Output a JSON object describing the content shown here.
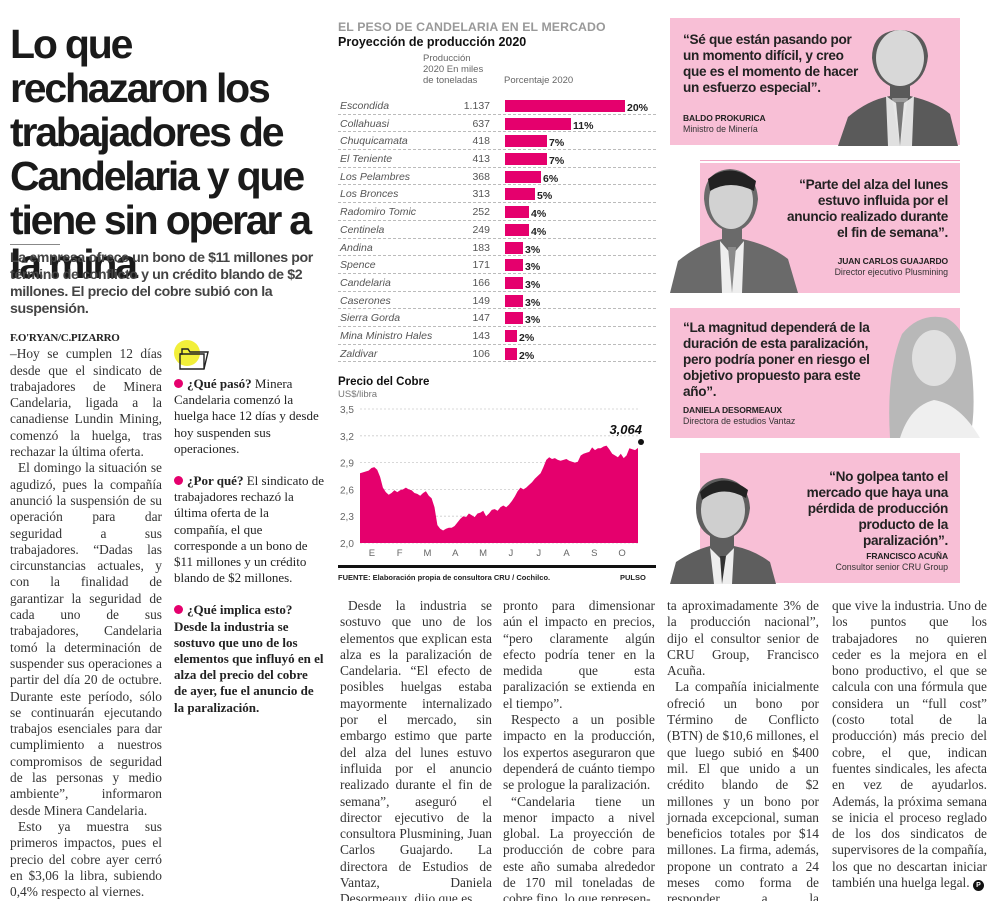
{
  "article": {
    "headline": "Lo que rechazaron los trabajadores de Candelaria y que tiene sin operar a la mina",
    "deck": "La empresa ofrece un bono de $11 millones por término de conflicto y un crédito blando de $2 millones. El precio del cobre subió con la suspensión.",
    "byline": "F.O'RYAN/C.PIZARRO",
    "col1": [
      "–Hoy se cumplen 12 días desde que el sindicato de trabajadores de Minera Candelaria, ligada a la canadiense Lundin Mining, comenzó la huelga, tras rechazar la última oferta.",
      "El domingo la situación se agudizó, pues la compañía anunció la suspensión de su operación para dar seguridad a sus trabajadores. “Dadas las circunstancias actuales, y con la finalidad de garantizar la seguridad de cada uno de sus trabajadores, Candelaria tomó la determinación de suspender sus operaciones a partir del día 20 de octubre. Durante este período, sólo se continuarán ejecutando trabajos esenciales para dar cumplimiento a nuestros compromisos de seguridad de las personas y medio ambiente”, informaron desde Minera Candelaria.",
      "Esto ya muestra sus primeros impactos, pues el precio del cobre ayer cerró en $3,06 la libra, subiendo 0,4% respecto al viernes."
    ],
    "col3": [
      "Desde la industria se sostuvo que uno de los elementos que explican esta alza es la paralización de Candelaria. “El efecto de posibles huelgas estaba mayormente internalizado por el mercado, sin embargo estimo que parte del alza del lunes estuvo influida por el anuncio realizado durante el fin de semana”, aseguró el director ejecutivo de la consultora Plusmining, Juan Carlos Guajardo. La directora de Estudios de Vantaz, Daniela Desormeaux, dijo que es"
    ],
    "col4": [
      "pronto para dimensionar aún el impacto en precios, “pero claramente algún efecto podría tener en la medida que esta paralización se extienda en el tiempo”.",
      "Respecto a un posible impacto en la producción, los expertos aseguraron que dependerá de cuánto tiempo se prologue la paralización.",
      "“Candelaria tiene un menor impacto a nivel global. La proyección de producción de cobre para este año sumaba alrededor de 170 mil toneladas de cobre fino, lo que represen-"
    ],
    "col5": [
      "ta aproximadamente 3% de la producción nacional”, dijo el consultor senior de CRU Group, Francisco Acuña.",
      "La compañía inicialmente ofreció un bono por Término de Conflicto (BTN) de $10,6 millones, el que luego subió en $400 mil. El que unido a un crédito blando de $2 millones y un bono por jornada excepcional, suman beneficios totales por $14 millones. La firma, además, propone un contrato a 24 meses como forma de responder a la incertidumbre"
    ],
    "col6": [
      "que vive la industria. Uno de los puntos que los trabajadores no quieren ceder es la mejora en el bono productivo, el que se calcula con una fórmula que considera un “full cost” (costo total de la producción) más precio del cobre, el que, indican fuentes sindicales, les afecta en vez de ayudarlos. Además, la próxima semana se inicia el proceso reglado de los dos sindicatos de supervisores de la compañía, los que no descartan iniciar también una huelga legal."
    ],
    "end_mark": "P"
  },
  "sidebar": {
    "icon": "folder-icon",
    "items": [
      {
        "q": "¿Qué pasó?",
        "a": "Minera Candelaria comenzó la huelga hace 12 días y desde hoy suspenden sus operaciones."
      },
      {
        "q": "¿Por qué?",
        "a": "El sindicato de trabajadores rechazó la última oferta de la compañía, el que corresponde a un bono de $11 millones y un crédito blando de $2 millones."
      },
      {
        "q": "¿Qué implica esto?",
        "a": "Desde la industria se sostuvo que uno de los elementos que influyó en el alza del precio del cobre de ayer, fue el anuncio de la paralización."
      }
    ]
  },
  "colors": {
    "accent": "#e5006d",
    "quote_bg": "#f8bfd6",
    "icon_yellow": "#f2ef3a"
  },
  "chart_data": [
    {
      "type": "bar",
      "kicker": "EL PESO DE CANDELARIA EN EL MERCADO",
      "title": "Proyección de producción 2020",
      "column_headers": [
        "Producción 2020 En miles de toneladas",
        "Porcentaje 2020"
      ],
      "categories": [
        "Escondida",
        "Collahuasi",
        "Chuquicamata",
        "El Teniente",
        "Los Pelambres",
        "Los Bronces",
        "Radomiro Tomic",
        "Centinela",
        "Andina",
        "Spence",
        "Candelaria",
        "Caserones",
        "Sierra Gorda",
        "Mina Ministro Hales",
        "Zaldivar"
      ],
      "production_labels": [
        "1.137",
        "637",
        "418",
        "413",
        "368",
        "313",
        "252",
        "249",
        "183",
        "171",
        "166",
        "149",
        "147",
        "143",
        "106"
      ],
      "production": [
        1137,
        637,
        418,
        413,
        368,
        313,
        252,
        249,
        183,
        171,
        166,
        149,
        147,
        143,
        106
      ],
      "values": [
        20,
        11,
        7,
        7,
        6,
        5,
        4,
        4,
        3,
        3,
        3,
        3,
        3,
        2,
        2
      ],
      "value_labels": [
        "20%",
        "11%",
        "7%",
        "7%",
        "6%",
        "5%",
        "4%",
        "4%",
        "3%",
        "3%",
        "3%",
        "3%",
        "3%",
        "2%",
        "2%"
      ],
      "unit": "%"
    },
    {
      "type": "area",
      "title": "Precio del Cobre",
      "ylabel": "US$/libra",
      "ylim": [
        2.0,
        3.5
      ],
      "yticks": [
        "3,5",
        "3,2",
        "2,9",
        "2,6",
        "2,3",
        "2,0"
      ],
      "ytick_values": [
        3.5,
        3.2,
        2.9,
        2.6,
        2.3,
        2.0
      ],
      "categories": [
        "E",
        "F",
        "M",
        "A",
        "M",
        "J",
        "J",
        "A",
        "S",
        "O"
      ],
      "last_value_label": "3,064",
      "last_value": 3.064,
      "grid": true,
      "series": [
        {
          "name": "Precio del Cobre",
          "values": [
            2.78,
            2.79,
            2.8,
            2.81,
            2.84,
            2.85,
            2.82,
            2.74,
            2.62,
            2.57,
            2.54,
            2.56,
            2.59,
            2.57,
            2.59,
            2.6,
            2.62,
            2.6,
            2.59,
            2.56,
            2.55,
            2.53,
            2.56,
            2.58,
            2.53,
            2.5,
            2.4,
            2.2,
            2.16,
            2.14,
            2.16,
            2.17,
            2.17,
            2.19,
            2.23,
            2.27,
            2.3,
            2.29,
            2.33,
            2.31,
            2.29,
            2.33,
            2.34,
            2.36,
            2.3,
            2.33,
            2.37,
            2.38,
            2.36,
            2.4,
            2.42,
            2.4,
            2.43,
            2.47,
            2.52,
            2.58,
            2.62,
            2.6,
            2.62,
            2.65,
            2.68,
            2.72,
            2.75,
            2.78,
            2.85,
            2.93,
            2.96,
            2.94,
            2.95,
            2.93,
            2.92,
            2.93,
            2.94,
            2.92,
            2.91,
            2.9,
            2.91,
            2.98,
            3.0,
            3.01,
            3.02,
            3.07,
            3.04,
            3.06,
            3.06,
            3.08,
            3.09,
            3.05,
            3.0,
            2.98,
            2.96,
            3.0,
            2.95,
            2.98,
            3.06,
            3.05,
            3.04,
            3.064
          ]
        }
      ]
    }
  ],
  "chart_footer": {
    "source": "FUENTE: Elaboración propia de consultora CRU / Cochilco.",
    "brand": "PULSO"
  },
  "quotes": [
    {
      "text": "“Sé que están pasando por un momento difícil, y creo que es el momento de hacer un esfuerzo especial”.",
      "name": "BALDO PROKURICA",
      "role": "Ministro de Minería"
    },
    {
      "text": "“Parte del alza del lunes estuvo influida por el anuncio realizado durante el fin de semana”.",
      "name": "JUAN CARLOS GUAJARDO",
      "role": "Director ejecutivo Plusmining"
    },
    {
      "text": "“La magnitud dependerá de la duración de esta paralización, pero podría poner en riesgo el objetivo propuesto para este año”.",
      "name": "DANIELA DESORMEAUX",
      "role": "Directora de estudios Vantaz"
    },
    {
      "text": "“No golpea tanto el mercado que haya una pérdida de producción producto de la paralización”.",
      "name": "FRANCISCO ACUÑA",
      "role": "Consultor senior CRU Group"
    }
  ]
}
